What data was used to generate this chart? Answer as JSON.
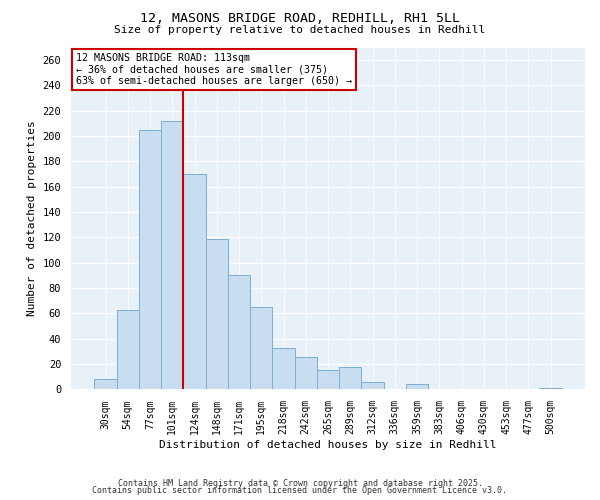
{
  "title1": "12, MASONS BRIDGE ROAD, REDHILL, RH1 5LL",
  "title2": "Size of property relative to detached houses in Redhill",
  "xlabel": "Distribution of detached houses by size in Redhill",
  "ylabel": "Number of detached properties",
  "bar_labels": [
    "30sqm",
    "54sqm",
    "77sqm",
    "101sqm",
    "124sqm",
    "148sqm",
    "171sqm",
    "195sqm",
    "218sqm",
    "242sqm",
    "265sqm",
    "289sqm",
    "312sqm",
    "336sqm",
    "359sqm",
    "383sqm",
    "406sqm",
    "430sqm",
    "453sqm",
    "477sqm",
    "500sqm"
  ],
  "bar_values": [
    8,
    63,
    205,
    212,
    170,
    119,
    90,
    65,
    33,
    26,
    15,
    18,
    6,
    0,
    4,
    0,
    0,
    0,
    0,
    0,
    1
  ],
  "bar_color": "#c8ddf0",
  "bar_edge_color": "#7bafd4",
  "vline_x": 3.5,
  "vline_color": "#cc0000",
  "annotation_title": "12 MASONS BRIDGE ROAD: 113sqm",
  "annotation_line1": "← 36% of detached houses are smaller (375)",
  "annotation_line2": "63% of semi-detached houses are larger (650) →",
  "annotation_box_color": "#ffffff",
  "annotation_box_edge": "#cc0000",
  "ylim": [
    0,
    270
  ],
  "yticks": [
    0,
    20,
    40,
    60,
    80,
    100,
    120,
    140,
    160,
    180,
    200,
    220,
    240,
    260
  ],
  "footer1": "Contains HM Land Registry data © Crown copyright and database right 2025.",
  "footer2": "Contains public sector information licensed under the Open Government Licence v3.0.",
  "bg_color": "#ffffff",
  "plot_bg_color": "#e8f0f8",
  "grid_color": "#ffffff"
}
